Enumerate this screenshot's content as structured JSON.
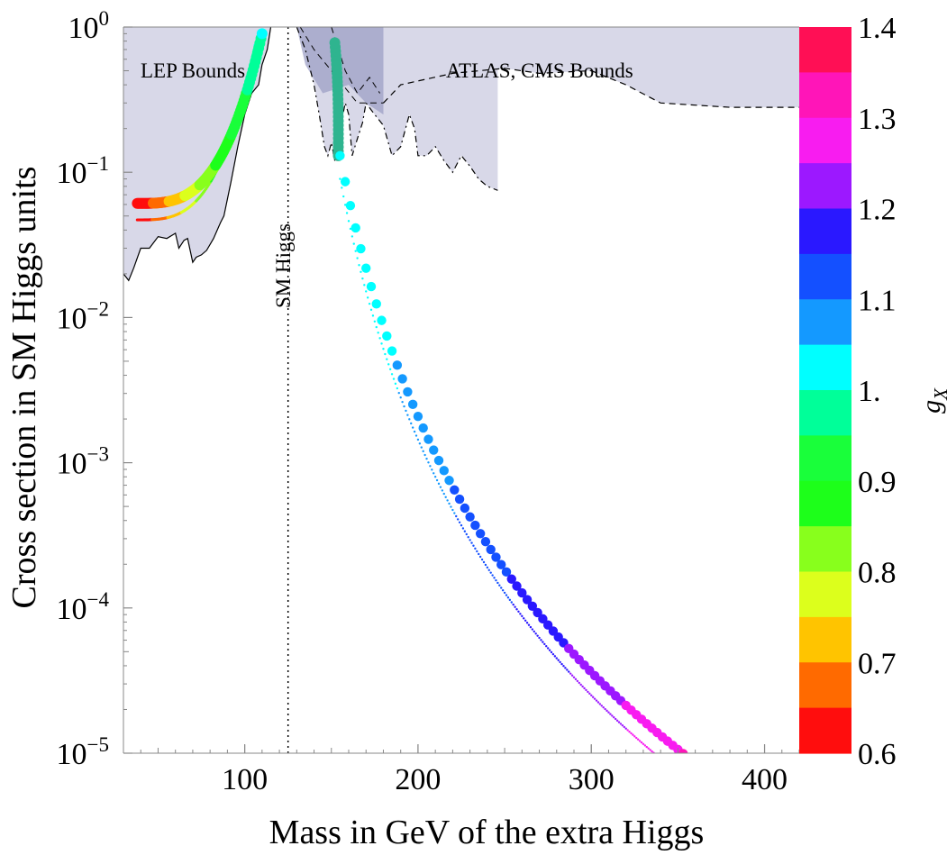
{
  "chart_data": {
    "type": "scatter",
    "title": "",
    "xlabel": "Mass in GeV of the extra Higgs",
    "ylabel": "Cross section in SM Higgs units",
    "xlim": [
      30,
      420
    ],
    "ylim_log10": [
      -5,
      0
    ],
    "yscale": "log",
    "x_ticks": [
      {
        "value": 100,
        "label": "100"
      },
      {
        "value": 200,
        "label": "200"
      },
      {
        "value": 300,
        "label": "300"
      },
      {
        "value": 400,
        "label": "400"
      }
    ],
    "y_ticks": [
      {
        "exp": 0,
        "base": "10",
        "sup": "0"
      },
      {
        "exp": -1,
        "base": "10",
        "sup": "−1"
      },
      {
        "exp": -2,
        "base": "10",
        "sup": "−2"
      },
      {
        "exp": -3,
        "base": "10",
        "sup": "−3"
      },
      {
        "exp": -4,
        "base": "10",
        "sup": "−4"
      },
      {
        "exp": -5,
        "base": "10",
        "sup": "−5"
      }
    ],
    "annotations": {
      "lep": "LEP Bounds",
      "atlas": "ATLAS, CMS Bounds",
      "sm_higgs": "SM Higgs"
    },
    "sm_higgs_mass": 125,
    "lep_bound": [
      [
        30,
        0.02
      ],
      [
        33,
        0.018
      ],
      [
        36,
        0.022
      ],
      [
        40,
        0.03
      ],
      [
        45,
        0.03
      ],
      [
        50,
        0.036
      ],
      [
        55,
        0.035
      ],
      [
        60,
        0.038
      ],
      [
        62,
        0.03
      ],
      [
        65,
        0.034
      ],
      [
        67,
        0.035
      ],
      [
        70,
        0.024
      ],
      [
        72,
        0.026
      ],
      [
        75,
        0.027
      ],
      [
        78,
        0.029
      ],
      [
        82,
        0.035
      ],
      [
        86,
        0.045
      ],
      [
        88,
        0.05
      ],
      [
        92,
        0.085
      ],
      [
        96,
        0.15
      ],
      [
        100,
        0.25
      ],
      [
        104,
        0.35
      ],
      [
        108,
        0.4
      ],
      [
        110,
        0.55
      ],
      [
        113,
        0.7
      ],
      [
        115,
        1.0
      ]
    ],
    "atlas_cms_bound": [
      [
        130,
        1.0
      ],
      [
        135,
        0.7
      ],
      [
        140,
        0.4
      ],
      [
        143,
        0.25
      ],
      [
        146,
        0.15
      ],
      [
        148,
        0.13
      ],
      [
        150,
        0.16
      ],
      [
        152,
        0.12
      ],
      [
        155,
        0.2
      ],
      [
        158,
        0.3
      ],
      [
        160,
        0.25
      ],
      [
        162,
        0.13
      ],
      [
        165,
        0.17
      ],
      [
        168,
        0.22
      ],
      [
        170,
        0.3
      ],
      [
        175,
        0.25
      ],
      [
        180,
        0.21
      ],
      [
        185,
        0.13
      ],
      [
        190,
        0.15
      ],
      [
        195,
        0.25
      ],
      [
        198,
        0.2
      ],
      [
        200,
        0.13
      ],
      [
        205,
        0.13
      ],
      [
        210,
        0.15
      ],
      [
        215,
        0.12
      ],
      [
        220,
        0.1
      ],
      [
        225,
        0.13
      ],
      [
        230,
        0.11
      ],
      [
        235,
        0.09
      ],
      [
        240,
        0.08
      ],
      [
        246,
        0.075
      ]
    ],
    "high_mass_bound": [
      [
        180,
        0.3
      ],
      [
        190,
        0.4
      ],
      [
        220,
        0.48
      ],
      [
        250,
        0.52
      ],
      [
        270,
        0.48
      ],
      [
        300,
        0.5
      ],
      [
        320,
        0.4
      ],
      [
        340,
        0.3
      ],
      [
        380,
        0.28
      ],
      [
        420,
        0.28
      ]
    ],
    "series": [
      {
        "name": "light branch (large dots)",
        "gx": [
          0.6,
          1.0
        ],
        "x_range": [
          38,
          110
        ],
        "y_start": 0.061,
        "y_end": 0.9,
        "bend": 3.2
      },
      {
        "name": "light branch (thin line)",
        "gx": [
          0.6,
          1.0
        ],
        "x_range": [
          38,
          106
        ],
        "y_start": 0.047,
        "y_end": 0.75,
        "bend": 3.2
      },
      {
        "name": "heavy branch (large dots)",
        "gx": [
          1.0,
          1.4
        ],
        "fit": "y = 0.13*((m-120)/35)^-5",
        "x_range": [
          155,
          420
        ]
      },
      {
        "name": "heavy branch (thin line)",
        "gx": [
          1.0,
          1.4
        ],
        "fit": "y = 0.09*((m-120)/35)^-5",
        "x_range": [
          155,
          420
        ]
      }
    ],
    "colorbar": {
      "label": "g",
      "label_sub": "X",
      "range": [
        0.6,
        1.4
      ],
      "tick_labels": [
        "1.4",
        "1.3",
        "1.2",
        "1.1",
        "1.",
        "0.9",
        "0.8",
        "0.7",
        "0.6"
      ],
      "colors_top_to_bottom": [
        "#ff0f55",
        "#ff15b8",
        "#f81cf0",
        "#9c18ff",
        "#2a18ff",
        "#1450ff",
        "#1499ff",
        "#00ffff",
        "#00ff99",
        "#19ff3a",
        "#1dff1a",
        "#88ff1c",
        "#dcff1c",
        "#ffc400",
        "#ff6a00",
        "#ff0d0d"
      ]
    },
    "colors": {
      "shade": "#d8d8e8",
      "shade_dark": "#9ea0c6",
      "axis": "#888888"
    }
  }
}
